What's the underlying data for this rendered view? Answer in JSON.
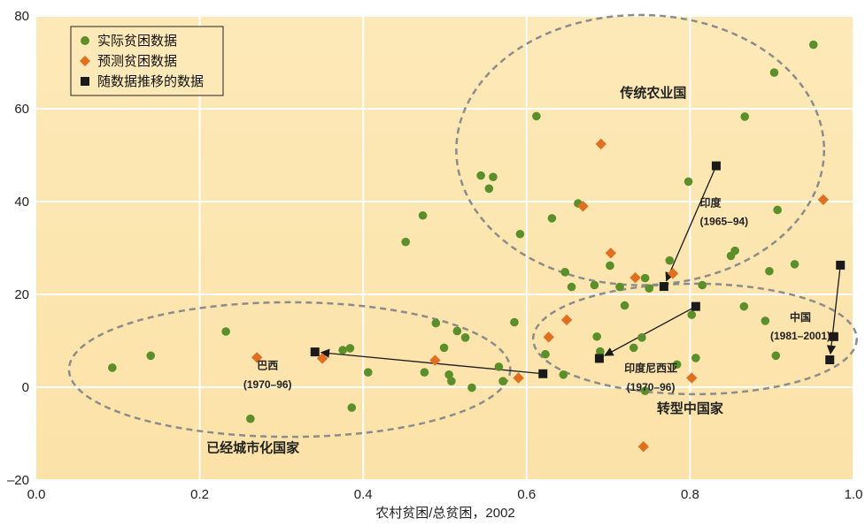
{
  "chart_data": {
    "type": "scatter",
    "title": "",
    "xlabel": "农村贫困/总贫困，2002",
    "ylabel": "",
    "xlim": [
      0.0,
      1.0
    ],
    "ylim": [
      -20,
      80
    ],
    "xticks": [
      "0.0",
      "0.2",
      "0.4",
      "0.6",
      "0.8",
      "1.0"
    ],
    "yticks": [
      "–20",
      "0",
      "20",
      "40",
      "60",
      "80"
    ],
    "grid": true,
    "legend_position": "top-left",
    "colors": {
      "plot_bg_top": "#fde9b8",
      "plot_bg_bottom": "#fbe2a8",
      "grid": "#ffffff",
      "actual": "#5a8f29",
      "projected": "#e06f1f",
      "trajectory": "#1a1a1a",
      "ellipse": "#8c8c8c"
    },
    "series": [
      {
        "name": "实际贫困数据",
        "marker": "circle",
        "points": [
          [
            0.093,
            4.2
          ],
          [
            0.14,
            6.8
          ],
          [
            0.232,
            12.0
          ],
          [
            0.262,
            -6.8
          ],
          [
            0.375,
            8.0
          ],
          [
            0.384,
            8.4
          ],
          [
            0.386,
            -4.4
          ],
          [
            0.406,
            3.2
          ],
          [
            0.452,
            31.3
          ],
          [
            0.473,
            37.0
          ],
          [
            0.475,
            3.2
          ],
          [
            0.489,
            13.8
          ],
          [
            0.499,
            8.5
          ],
          [
            0.505,
            2.7
          ],
          [
            0.508,
            1.3
          ],
          [
            0.515,
            12.1
          ],
          [
            0.525,
            10.7
          ],
          [
            0.533,
            -0.1
          ],
          [
            0.544,
            45.6
          ],
          [
            0.554,
            42.8
          ],
          [
            0.559,
            45.3
          ],
          [
            0.566,
            4.4
          ],
          [
            0.571,
            1.3
          ],
          [
            0.585,
            14.0
          ],
          [
            0.592,
            33.0
          ],
          [
            0.612,
            58.4
          ],
          [
            0.623,
            7.1
          ],
          [
            0.631,
            36.4
          ],
          [
            0.645,
            2.7
          ],
          [
            0.647,
            24.8
          ],
          [
            0.655,
            21.6
          ],
          [
            0.663,
            39.6
          ],
          [
            0.683,
            22.0
          ],
          [
            0.686,
            10.9
          ],
          [
            0.69,
            7.7
          ],
          [
            0.702,
            26.2
          ],
          [
            0.714,
            21.6
          ],
          [
            0.72,
            17.6
          ],
          [
            0.731,
            8.5
          ],
          [
            0.741,
            10.7
          ],
          [
            0.745,
            23.5
          ],
          [
            0.745,
            -0.8
          ],
          [
            0.75,
            21.3
          ],
          [
            0.775,
            27.3
          ],
          [
            0.784,
            4.9
          ],
          [
            0.798,
            44.3
          ],
          [
            0.802,
            15.6
          ],
          [
            0.807,
            6.3
          ],
          [
            0.815,
            22.0
          ],
          [
            0.85,
            28.3
          ],
          [
            0.855,
            29.4
          ],
          [
            0.866,
            17.4
          ],
          [
            0.867,
            58.3
          ],
          [
            0.892,
            14.3
          ],
          [
            0.897,
            25.0
          ],
          [
            0.903,
            67.8
          ],
          [
            0.905,
            6.8
          ],
          [
            0.907,
            38.2
          ],
          [
            0.928,
            26.5
          ],
          [
            0.951,
            73.8
          ]
        ]
      },
      {
        "name": "预测贫困数据",
        "marker": "diamond",
        "points": [
          [
            0.27,
            6.4
          ],
          [
            0.35,
            6.2
          ],
          [
            0.488,
            5.8
          ],
          [
            0.59,
            2.0
          ],
          [
            0.627,
            10.8
          ],
          [
            0.649,
            14.5
          ],
          [
            0.669,
            39.0
          ],
          [
            0.691,
            52.4
          ],
          [
            0.703,
            28.9
          ],
          [
            0.733,
            23.6
          ],
          [
            0.743,
            -12.8
          ],
          [
            0.779,
            24.5
          ],
          [
            0.802,
            2.0
          ],
          [
            0.963,
            40.4
          ]
        ]
      },
      {
        "name": "随数据推移的数据",
        "marker": "square",
        "points": [
          [
            0.832,
            47.7
          ],
          [
            0.768,
            21.7
          ],
          [
            0.341,
            7.6
          ],
          [
            0.62,
            2.9
          ],
          [
            0.807,
            17.4
          ],
          [
            0.689,
            6.2
          ],
          [
            0.984,
            26.3
          ],
          [
            0.976,
            10.9
          ],
          [
            0.971,
            5.9
          ]
        ]
      }
    ],
    "trajectories": [
      {
        "label": "印度",
        "period": "(1965–94)",
        "from": [
          0.832,
          47.7
        ],
        "to": [
          0.768,
          21.7
        ]
      },
      {
        "label": "巴西",
        "period": "(1970–96)",
        "from": [
          0.62,
          2.9
        ],
        "to": [
          0.341,
          7.6
        ]
      },
      {
        "label": "印度尼西亚",
        "period": "(1970–96)",
        "from": [
          0.807,
          17.4
        ],
        "to": [
          0.689,
          6.2
        ]
      },
      {
        "label": "中国",
        "period": "(1981–2001)",
        "from": [
          0.984,
          26.3
        ],
        "to": [
          0.971,
          5.9
        ]
      }
    ],
    "groups": [
      {
        "label": "传统农业国",
        "cx": 0.739,
        "cy": 51.1,
        "rx": 0.225,
        "ry": 29.1
      },
      {
        "label": "已经城市化国家",
        "cx": 0.31,
        "cy": 3.8,
        "rx": 0.27,
        "ry": 14.5
      },
      {
        "label": "转型中国家",
        "cx": 0.806,
        "cy": 10.4,
        "rx": 0.198,
        "ry": 11.9
      }
    ]
  }
}
